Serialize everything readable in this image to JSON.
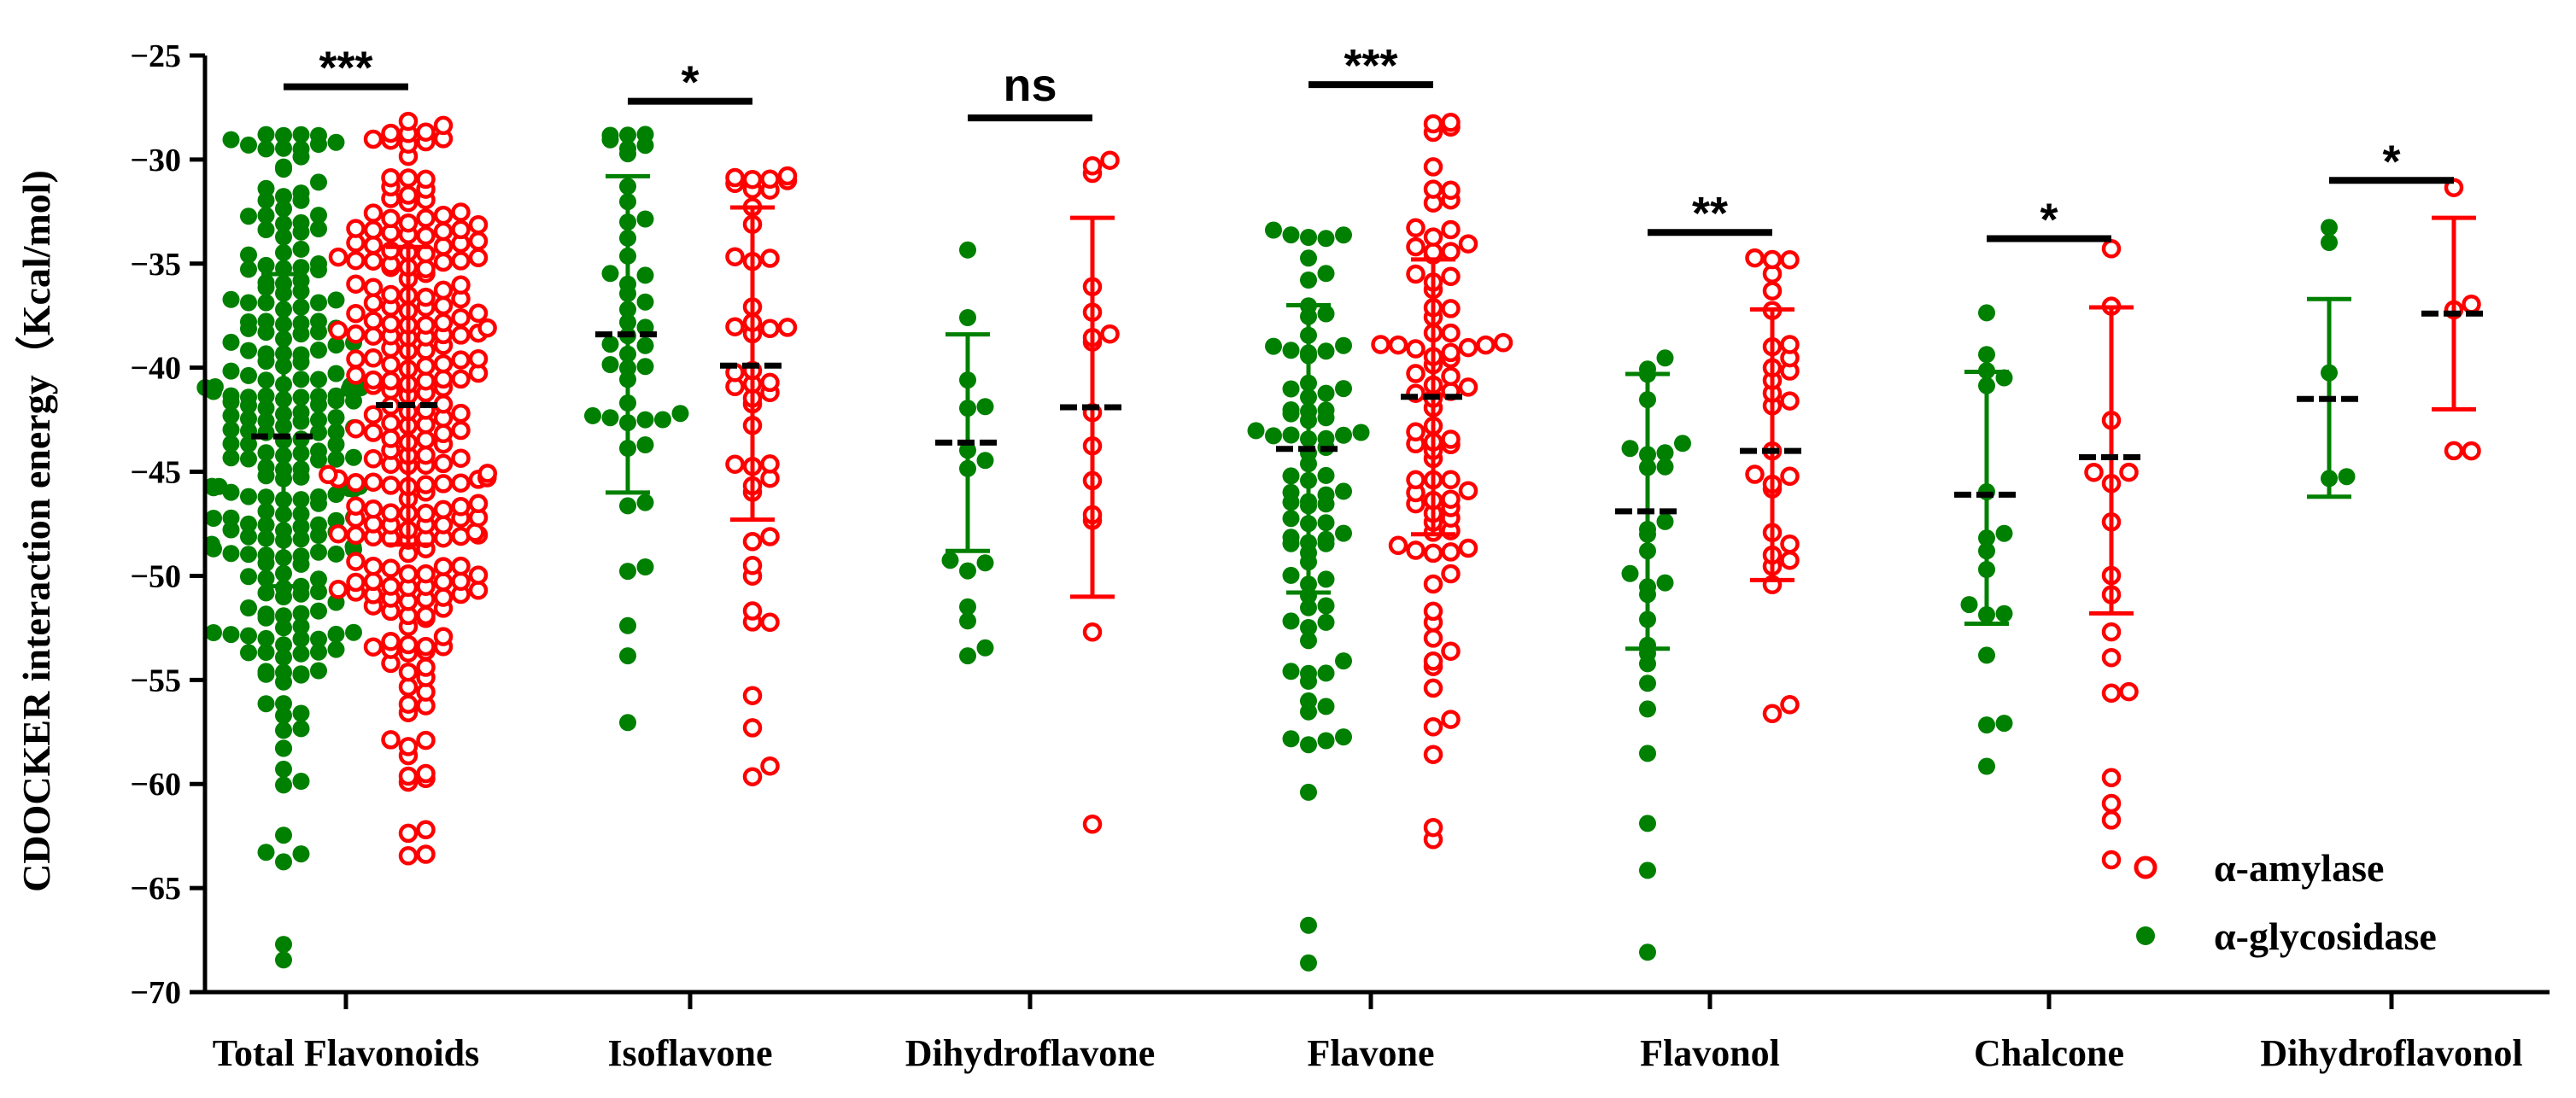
{
  "chart_data": {
    "type": "scatter",
    "title": "",
    "xlabel": "",
    "ylabel": "CDOCKER interaction energy（Kcal/mol)",
    "ylim": [
      -70,
      -25
    ],
    "yticks": [
      -25,
      -30,
      -35,
      -40,
      -45,
      -50,
      -55,
      -60,
      -65,
      -70
    ],
    "ytick_labels": [
      "−25",
      "−30",
      "−35",
      "−40",
      "−45",
      "−50",
      "−55",
      "−60",
      "−65",
      "−70"
    ],
    "grid": false,
    "legend_position": "bottom-right",
    "series": [
      {
        "name": "α-amylase",
        "color": "#ff0000",
        "marker": "open-circle"
      },
      {
        "name": "α-glycosidase",
        "color": "#008000",
        "marker": "filled-circle"
      }
    ],
    "categories": [
      "Total Flavonoids",
      "Isoflavone",
      "Dihydroflavone",
      "Flavone",
      "Flavonol",
      "Chalcone",
      "Dihydroflavonol"
    ],
    "groups": [
      {
        "category": "Total Flavonoids",
        "significance": "***",
        "sig_y": -26.5,
        "glycosidase": {
          "mean": -43.3,
          "sd_low": -50.5,
          "sd_high": -35.5,
          "count": 240,
          "min": -68.5,
          "max": -28.8
        },
        "amylase": {
          "mean": -41.8,
          "sd_low": -48.5,
          "sd_high": -34.2,
          "count": 240,
          "min": -63.5,
          "max": -28.2
        }
      },
      {
        "category": "Isoflavone",
        "significance": "*",
        "sig_y": -27.2,
        "glycosidase": {
          "mean": -38.4,
          "sd_low": -46.0,
          "sd_high": -30.8,
          "count": 45,
          "min": -57.1,
          "max": -28.8
        },
        "amylase": {
          "mean": -39.9,
          "sd_low": -47.3,
          "sd_high": -32.3,
          "count": 45,
          "min": -59.6,
          "max": -30.8
        }
      },
      {
        "category": "Dihydroflavone",
        "significance": "ns",
        "sig_y": -28.0,
        "glycosidase": {
          "mean": -43.6,
          "sd_low": -48.8,
          "sd_high": -38.4,
          "count": 15,
          "min": -53.8,
          "max": -34.3
        },
        "amylase": {
          "mean": -41.9,
          "sd_low": -51.0,
          "sd_high": -32.8,
          "count": 15,
          "min": -61.9,
          "max": -30.0
        }
      },
      {
        "category": "Flavone",
        "significance": "***",
        "sig_y": -26.4,
        "glycosidase": {
          "mean": -43.9,
          "sd_low": -50.8,
          "sd_high": -37.0,
          "count": 85,
          "min": -68.6,
          "max": -33.4
        },
        "amylase": {
          "mean": -41.4,
          "sd_low": -48.0,
          "sd_high": -34.8,
          "count": 85,
          "min": -62.7,
          "max": -28.2
        }
      },
      {
        "category": "Flavonol",
        "significance": "**",
        "sig_y": -33.5,
        "glycosidase": {
          "mean": -46.9,
          "sd_low": -53.5,
          "sd_high": -40.3,
          "count": 28,
          "min": -68.1,
          "max": -39.5
        },
        "amylase": {
          "mean": -44.0,
          "sd_low": -50.2,
          "sd_high": -37.2,
          "count": 28,
          "min": -56.6,
          "max": -34.7
        }
      },
      {
        "category": "Chalcone",
        "significance": "*",
        "sig_y": -33.8,
        "glycosidase": {
          "mean": -46.1,
          "sd_low": -52.3,
          "sd_high": -40.2,
          "count": 17,
          "min": -59.2,
          "max": -37.4
        },
        "amylase": {
          "mean": -44.3,
          "sd_low": -51.8,
          "sd_high": -37.1,
          "count": 17,
          "min": -63.6,
          "max": -34.3
        }
      },
      {
        "category": "Dihydroflavonol",
        "significance": "*",
        "sig_y": -31.0,
        "glycosidase": {
          "mean": -41.5,
          "sd_low": -46.2,
          "sd_high": -36.7,
          "count": 5,
          "min": -45.3,
          "max": -33.3
        },
        "amylase": {
          "mean": -37.4,
          "sd_low": -42.0,
          "sd_high": -32.8,
          "count": 5,
          "min": -44.0,
          "max": -31.3
        }
      }
    ]
  }
}
